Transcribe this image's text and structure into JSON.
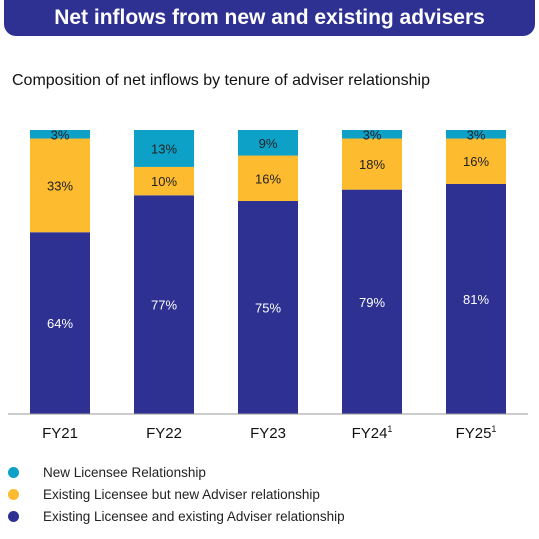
{
  "banner": {
    "title": "Net inflows from new and existing advisers"
  },
  "chart_data": {
    "type": "bar",
    "stacked": true,
    "title": "Composition of net inflows by tenure of adviser relationship",
    "categories": [
      "FY21",
      "FY22",
      "FY23",
      "FY24",
      "FY25"
    ],
    "category_superscripts": [
      "",
      "",
      "",
      "1",
      "1"
    ],
    "series": [
      {
        "name": "Existing Licensee and existing Adviser relationship",
        "color": "#2E3192",
        "label_color": "#ffffff",
        "values": [
          64,
          77,
          75,
          79,
          81
        ]
      },
      {
        "name": "Existing Licensee but new Adviser relationship",
        "color": "#FDBB30",
        "label_color": "#222222",
        "values": [
          33,
          10,
          16,
          18,
          16
        ]
      },
      {
        "name": "New Licensee Relationship",
        "color": "#0EA1C8",
        "label_color": "#222222",
        "values": [
          3,
          13,
          9,
          3,
          3
        ]
      }
    ],
    "value_suffix": "%",
    "ylim": [
      0,
      100
    ],
    "grid": false,
    "legend_position": "bottom-left"
  },
  "legend_order": [
    2,
    1,
    0
  ]
}
